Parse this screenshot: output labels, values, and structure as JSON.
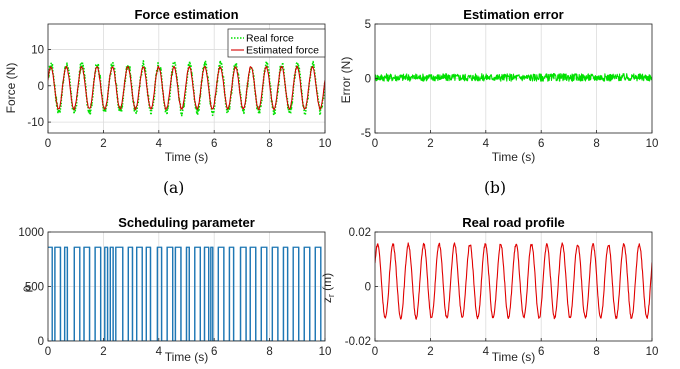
{
  "colors": {
    "real_force": "#00e000",
    "estimated_force": "#d40000",
    "error": "#00e000",
    "scheduling": "#1f77b4",
    "road": "#e00000"
  },
  "captions": {
    "a": "(a)",
    "b": "(b)"
  },
  "chart_data": [
    {
      "type": "line",
      "title": "Force estimation",
      "xlabel": "Time (s)",
      "ylabel": "Force (N)",
      "xlim": [
        0,
        10
      ],
      "ylim": [
        -13,
        17
      ],
      "xticks": [
        0,
        2,
        4,
        6,
        8,
        10
      ],
      "yticks": [
        -10,
        0,
        10
      ],
      "grid": true,
      "legend_position": "top-right",
      "series": [
        {
          "name": "Real force",
          "style": "dotted",
          "signal": {
            "amplitude": 6.5,
            "frequency": 1.8,
            "phase": 0.3,
            "offset": -0.6
          }
        },
        {
          "name": "Estimated force",
          "style": "solid",
          "signal": {
            "amplitude": 5.8,
            "frequency": 1.8,
            "phase": 0.4,
            "offset": -0.6
          }
        }
      ]
    },
    {
      "type": "line",
      "title": "Estimation error",
      "xlabel": "Time (s)",
      "ylabel": "Error (N)",
      "xlim": [
        0,
        10
      ],
      "ylim": [
        -5,
        5
      ],
      "xticks": [
        0,
        2,
        4,
        6,
        8,
        10
      ],
      "yticks": [
        -5,
        0,
        5
      ],
      "grid": true,
      "series": [
        {
          "signal": {
            "mean": 0.1,
            "noise": 0.35
          }
        }
      ]
    },
    {
      "type": "bar",
      "title": "Scheduling parameter",
      "xlabel": "Time (s)",
      "ylabel": "ρ",
      "xlim": [
        0,
        10
      ],
      "ylim": [
        0,
        1000
      ],
      "xticks": [
        0,
        2,
        4,
        6,
        8,
        10
      ],
      "yticks": [
        0,
        500,
        1000
      ],
      "grid": true,
      "levels": [
        0,
        860
      ],
      "switch_times": [
        0.15,
        0.25,
        0.45,
        0.6,
        0.7,
        0.95,
        1.15,
        1.3,
        1.5,
        1.7,
        1.9,
        2.05,
        2.15,
        2.25,
        2.35,
        2.45,
        2.7,
        2.9,
        3.05,
        3.2,
        3.4,
        3.55,
        3.7,
        3.95,
        4.1,
        4.3,
        4.5,
        4.6,
        4.8,
        5.0,
        5.1,
        5.3,
        5.5,
        5.65,
        5.8,
        5.88,
        5.95,
        6.15,
        6.35,
        6.55,
        6.7,
        6.95,
        7.15,
        7.3,
        7.5,
        7.7,
        7.9,
        8.1,
        8.3,
        8.5,
        8.65,
        8.85,
        9.05,
        9.25,
        9.45,
        9.65,
        9.85
      ]
    },
    {
      "type": "line",
      "title": "Real road profile",
      "xlabel": "Time (s)",
      "ylabel": "z_r (m)",
      "xlim": [
        0,
        10
      ],
      "ylim": [
        -0.02,
        0.02
      ],
      "xticks": [
        0,
        2,
        4,
        6,
        8,
        10
      ],
      "yticks": [
        -0.02,
        0,
        0.02
      ],
      "grid": true,
      "series": [
        {
          "signal": {
            "amplitude": 0.0135,
            "frequency": 1.8,
            "phase": 0.5,
            "offset": 0.002
          }
        }
      ]
    }
  ]
}
